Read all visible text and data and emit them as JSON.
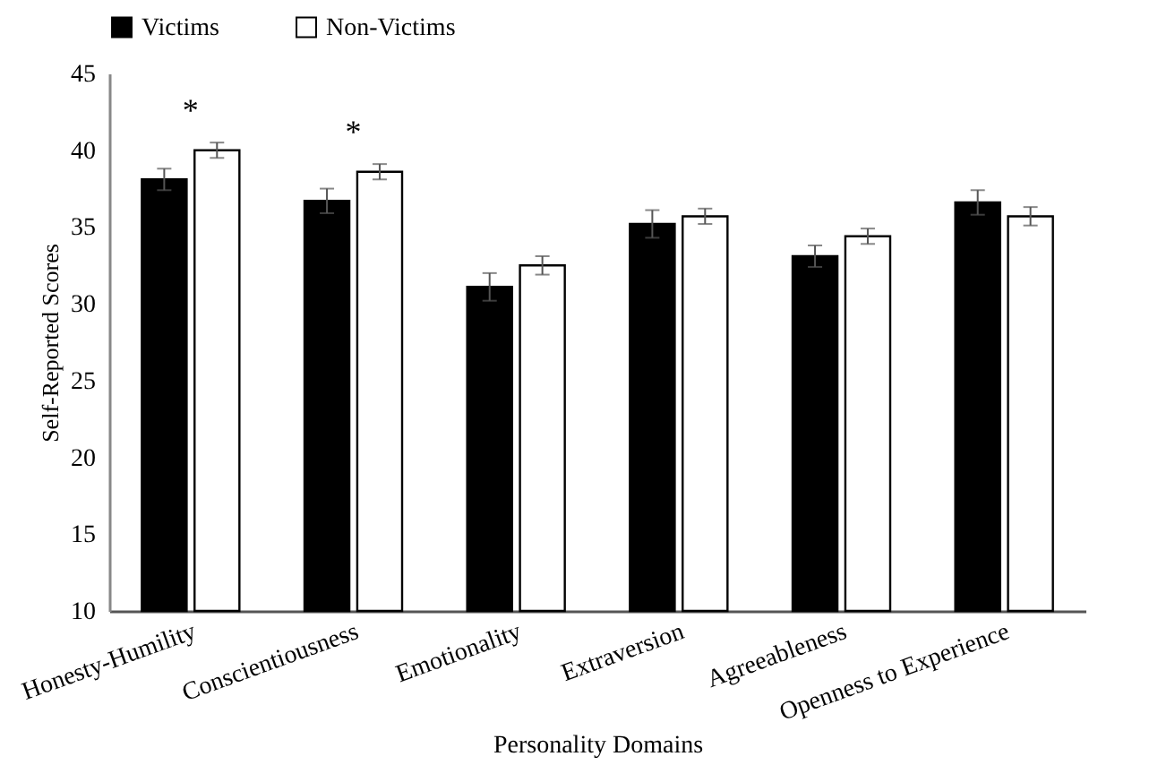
{
  "chart_data": {
    "type": "bar",
    "xlabel": "Personality Domains",
    "ylabel": "Self-Reported Scores",
    "categories": [
      "Honesty-Humility",
      "Conscientiousness",
      "Emotionality",
      "Extraversion",
      "Agreeableness",
      "Openness to Experience"
    ],
    "series": [
      {
        "name": "Victims",
        "color": "#000000",
        "values": [
          38.1,
          36.7,
          31.1,
          35.2,
          33.1,
          36.6
        ],
        "errors": [
          0.7,
          0.8,
          0.9,
          0.9,
          0.7,
          0.8
        ]
      },
      {
        "name": "Non-Victims",
        "color": "#ffffff",
        "values": [
          40.0,
          38.6,
          32.5,
          35.7,
          34.4,
          35.7
        ],
        "errors": [
          0.5,
          0.5,
          0.6,
          0.5,
          0.5,
          0.6
        ]
      }
    ],
    "ylim": [
      10,
      45
    ],
    "yticks": [
      10,
      15,
      20,
      25,
      30,
      35,
      40,
      45
    ],
    "grid": false,
    "legend": "top",
    "annotations": [
      "*",
      "*"
    ]
  }
}
